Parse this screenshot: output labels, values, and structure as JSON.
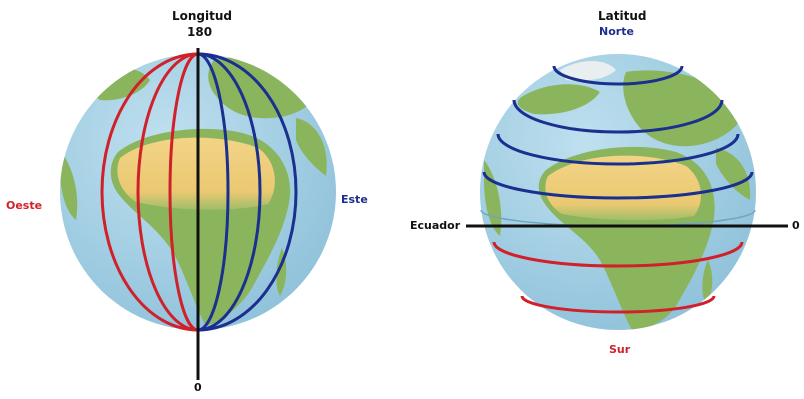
{
  "longitude": {
    "title": "Longitud",
    "top_value": "180",
    "bottom_value": "0",
    "west": "Oeste",
    "east": "Este"
  },
  "latitude": {
    "title": "Latitud",
    "north": "Norte",
    "south": "Sur",
    "equator": "Ecuador",
    "equator_value": "0"
  },
  "colors": {
    "ocean": "#9cc9df",
    "land": "#8bb55c",
    "desert": "#efcc78",
    "west_lines": "#d0202a",
    "east_lines": "#1b2f8f",
    "axis": "#111111"
  },
  "icons": {
    "left": "globe-longitude-icon",
    "right": "globe-latitude-icon"
  }
}
